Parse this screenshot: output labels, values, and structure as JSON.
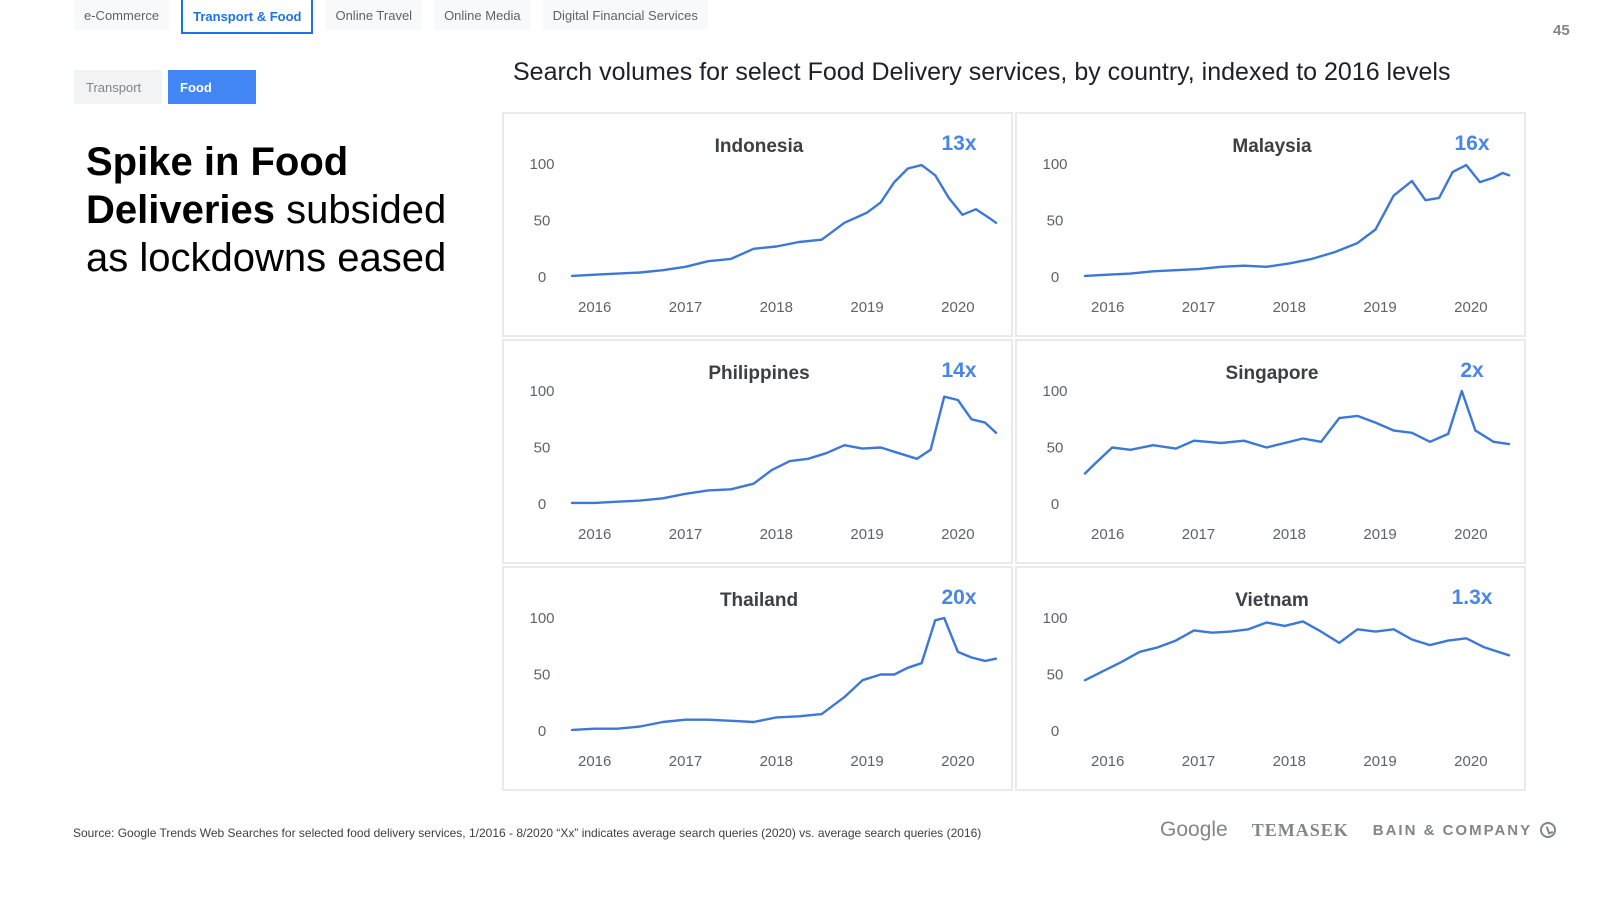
{
  "nav": {
    "tabs": [
      {
        "label": "e-Commerce",
        "active": false
      },
      {
        "label": "Transport & Food",
        "active": true
      },
      {
        "label": "Online Travel",
        "active": false
      },
      {
        "label": "Online Media",
        "active": false
      },
      {
        "label": "Digital Financial Services",
        "active": false
      }
    ],
    "subtabs": [
      {
        "label": "Transport",
        "active": false
      },
      {
        "label": "Food",
        "active": true
      }
    ]
  },
  "page_number": "45",
  "headline": {
    "bold": "Spike in Food Deliveries",
    "rest": " subsided as lockdowns eased"
  },
  "source": "Source: Google Trends Web Searches for selected food delivery services, 1/2016 - 8/2020 “Xx” indicates average search queries (2020) vs. average search queries (2016)",
  "logos": {
    "google": "Google",
    "temasek": "TEMASEK",
    "bain": "BAIN & COMPANY"
  },
  "colors": {
    "accent": "#4285f4",
    "line": "#3c78d8",
    "multiplier": "#4a86e8"
  },
  "chart_data": {
    "type": "line",
    "title": "Search volumes for select Food Delivery services, by country, indexed to 2016 levels",
    "x_ticks": [
      "2016",
      "2017",
      "2018",
      "2019",
      "2020"
    ],
    "y_ticks": [
      "0",
      "50",
      "100"
    ],
    "ylim": [
      0,
      100
    ],
    "xlim": [
      2016,
      2020.67
    ],
    "panels": [
      {
        "country": "Indonesia",
        "multiplier": "13x",
        "points": [
          [
            2016.0,
            1
          ],
          [
            2016.25,
            2
          ],
          [
            2016.5,
            3
          ],
          [
            2016.75,
            4
          ],
          [
            2017.0,
            6
          ],
          [
            2017.25,
            9
          ],
          [
            2017.5,
            14
          ],
          [
            2017.75,
            16
          ],
          [
            2018.0,
            25
          ],
          [
            2018.25,
            27
          ],
          [
            2018.5,
            31
          ],
          [
            2018.75,
            33
          ],
          [
            2019.0,
            48
          ],
          [
            2019.25,
            57
          ],
          [
            2019.4,
            66
          ],
          [
            2019.55,
            84
          ],
          [
            2019.7,
            96
          ],
          [
            2019.85,
            99
          ],
          [
            2020.0,
            90
          ],
          [
            2020.15,
            70
          ],
          [
            2020.3,
            55
          ],
          [
            2020.45,
            60
          ],
          [
            2020.6,
            52
          ],
          [
            2020.67,
            48
          ]
        ]
      },
      {
        "country": "Malaysia",
        "multiplier": "16x",
        "points": [
          [
            2016.0,
            1
          ],
          [
            2016.25,
            2
          ],
          [
            2016.5,
            3
          ],
          [
            2016.75,
            5
          ],
          [
            2017.0,
            6
          ],
          [
            2017.25,
            7
          ],
          [
            2017.5,
            9
          ],
          [
            2017.75,
            10
          ],
          [
            2018.0,
            9
          ],
          [
            2018.25,
            12
          ],
          [
            2018.5,
            16
          ],
          [
            2018.75,
            22
          ],
          [
            2019.0,
            30
          ],
          [
            2019.2,
            42
          ],
          [
            2019.4,
            72
          ],
          [
            2019.6,
            85
          ],
          [
            2019.75,
            68
          ],
          [
            2019.9,
            70
          ],
          [
            2020.05,
            93
          ],
          [
            2020.2,
            99
          ],
          [
            2020.35,
            84
          ],
          [
            2020.5,
            88
          ],
          [
            2020.6,
            92
          ],
          [
            2020.67,
            90
          ]
        ]
      },
      {
        "country": "Philippines",
        "multiplier": "14x",
        "points": [
          [
            2016.0,
            1
          ],
          [
            2016.25,
            1
          ],
          [
            2016.5,
            2
          ],
          [
            2016.75,
            3
          ],
          [
            2017.0,
            5
          ],
          [
            2017.25,
            9
          ],
          [
            2017.5,
            12
          ],
          [
            2017.75,
            13
          ],
          [
            2018.0,
            18
          ],
          [
            2018.2,
            30
          ],
          [
            2018.4,
            38
          ],
          [
            2018.6,
            40
          ],
          [
            2018.8,
            45
          ],
          [
            2019.0,
            52
          ],
          [
            2019.2,
            49
          ],
          [
            2019.4,
            50
          ],
          [
            2019.6,
            45
          ],
          [
            2019.8,
            40
          ],
          [
            2019.95,
            48
          ],
          [
            2020.1,
            95
          ],
          [
            2020.25,
            92
          ],
          [
            2020.4,
            75
          ],
          [
            2020.55,
            72
          ],
          [
            2020.67,
            63
          ]
        ]
      },
      {
        "country": "Singapore",
        "multiplier": "2x",
        "points": [
          [
            2016.0,
            27
          ],
          [
            2016.1,
            35
          ],
          [
            2016.3,
            50
          ],
          [
            2016.5,
            48
          ],
          [
            2016.75,
            52
          ],
          [
            2017.0,
            49
          ],
          [
            2017.2,
            56
          ],
          [
            2017.5,
            54
          ],
          [
            2017.75,
            56
          ],
          [
            2018.0,
            50
          ],
          [
            2018.2,
            54
          ],
          [
            2018.4,
            58
          ],
          [
            2018.6,
            55
          ],
          [
            2018.8,
            76
          ],
          [
            2019.0,
            78
          ],
          [
            2019.2,
            72
          ],
          [
            2019.4,
            65
          ],
          [
            2019.6,
            63
          ],
          [
            2019.8,
            55
          ],
          [
            2020.0,
            62
          ],
          [
            2020.15,
            100
          ],
          [
            2020.3,
            65
          ],
          [
            2020.5,
            55
          ],
          [
            2020.67,
            53
          ]
        ]
      },
      {
        "country": "Thailand",
        "multiplier": "20x",
        "points": [
          [
            2016.0,
            1
          ],
          [
            2016.25,
            2
          ],
          [
            2016.5,
            2
          ],
          [
            2016.75,
            4
          ],
          [
            2017.0,
            8
          ],
          [
            2017.25,
            10
          ],
          [
            2017.5,
            10
          ],
          [
            2017.75,
            9
          ],
          [
            2018.0,
            8
          ],
          [
            2018.25,
            12
          ],
          [
            2018.5,
            13
          ],
          [
            2018.75,
            15
          ],
          [
            2019.0,
            30
          ],
          [
            2019.2,
            45
          ],
          [
            2019.4,
            50
          ],
          [
            2019.55,
            50
          ],
          [
            2019.7,
            56
          ],
          [
            2019.85,
            60
          ],
          [
            2020.0,
            98
          ],
          [
            2020.1,
            100
          ],
          [
            2020.25,
            70
          ],
          [
            2020.4,
            65
          ],
          [
            2020.55,
            62
          ],
          [
            2020.67,
            64
          ]
        ]
      },
      {
        "country": "Vietnam",
        "multiplier": "1.3x",
        "points": [
          [
            2016.0,
            45
          ],
          [
            2016.2,
            53
          ],
          [
            2016.4,
            61
          ],
          [
            2016.6,
            70
          ],
          [
            2016.8,
            74
          ],
          [
            2017.0,
            80
          ],
          [
            2017.2,
            89
          ],
          [
            2017.4,
            87
          ],
          [
            2017.6,
            88
          ],
          [
            2017.8,
            90
          ],
          [
            2018.0,
            96
          ],
          [
            2018.2,
            93
          ],
          [
            2018.4,
            97
          ],
          [
            2018.6,
            88
          ],
          [
            2018.8,
            78
          ],
          [
            2019.0,
            90
          ],
          [
            2019.2,
            88
          ],
          [
            2019.4,
            90
          ],
          [
            2019.6,
            81
          ],
          [
            2019.8,
            76
          ],
          [
            2020.0,
            80
          ],
          [
            2020.2,
            82
          ],
          [
            2020.4,
            74
          ],
          [
            2020.67,
            67
          ]
        ]
      }
    ]
  }
}
